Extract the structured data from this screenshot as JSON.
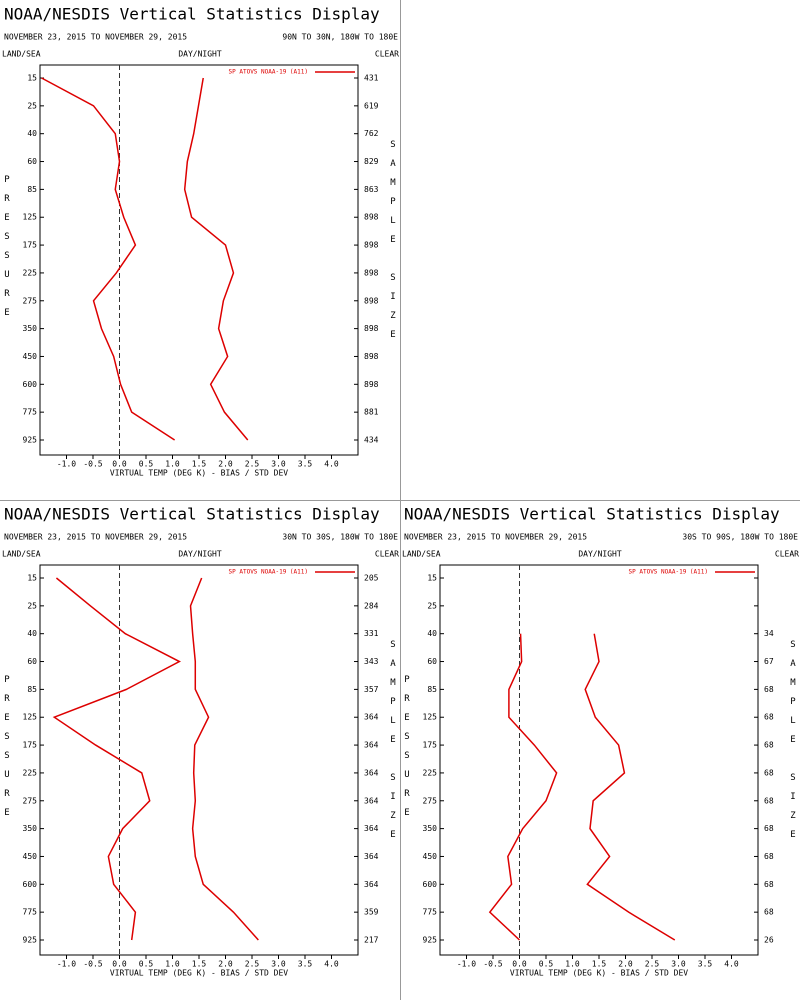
{
  "chart_data": [
    {
      "type": "line",
      "title": "NOAA/NESDIS Vertical Statistics Display",
      "date_range": "NOVEMBER 23, 2015 TO NOVEMBER 29, 2015",
      "region": "90N TO 30N, 180W TO 180E",
      "land_sea": "LAND/SEA",
      "day_night": "DAY/NIGHT",
      "sky": "CLEAR",
      "legend": "SP ATOVS NOAA-19 (A11)",
      "y_label": "PRESSURE",
      "y2_label": "SAMPLE SIZE",
      "x_label": "VIRTUAL TEMP (DEG K) - BIAS / STD DEV",
      "categories": [
        15,
        25,
        40,
        60,
        85,
        125,
        175,
        225,
        275,
        350,
        450,
        600,
        775,
        925
      ],
      "sample_sizes": [
        431,
        619,
        762,
        829,
        863,
        898,
        898,
        898,
        898,
        898,
        898,
        898,
        881,
        434
      ],
      "series": [
        {
          "name": "SP ATOVS NOAA-19 (A11)",
          "color": "#dd0000",
          "values": [
            -1.47,
            -0.49,
            -0.08,
            0.0,
            -0.08,
            0.08,
            0.3,
            -0.06,
            -0.49,
            -0.34,
            -0.11,
            0.02,
            0.23,
            1.04
          ]
        },
        {
          "color": "#dd0000",
          "values": [
            1.58,
            1.49,
            1.4,
            1.28,
            1.23,
            1.36,
            2.0,
            2.15,
            1.96,
            1.87,
            2.04,
            1.72,
            1.98,
            2.42
          ]
        }
      ],
      "xlim": [
        -1.5,
        4.5
      ],
      "xticks": [
        {
          "value": -1.0,
          "label": "-1.0"
        },
        -0.5,
        {
          "value": 0.0,
          "label": "0.0"
        },
        0.5,
        {
          "value": 1.0,
          "label": "1.0"
        },
        1.5,
        {
          "value": 2.0,
          "label": "2.0"
        },
        2.5,
        {
          "value": 3.0,
          "label": "3.0"
        },
        3.5,
        {
          "value": 4.0,
          "label": "4.0"
        }
      ]
    },
    {
      "type": "line",
      "title": "NOAA/NESDIS Vertical Statistics Display",
      "date_range": "NOVEMBER 23, 2015 TO NOVEMBER 29, 2015",
      "region": "30N TO 30S, 180W TO 180E",
      "land_sea": "LAND/SEA",
      "day_night": "DAY/NIGHT",
      "sky": "CLEAR",
      "legend": "SP ATOVS NOAA-19 (A11)",
      "y_label": "PRESSURE",
      "y2_label": "SAMPLE SIZE",
      "x_label": "VIRTUAL TEMP (DEG K) - BIAS / STD DEV",
      "categories": [
        15,
        25,
        40,
        60,
        85,
        125,
        175,
        225,
        275,
        350,
        450,
        600,
        775,
        925
      ],
      "sample_sizes": [
        205,
        284,
        331,
        343,
        357,
        364,
        364,
        364,
        364,
        364,
        364,
        364,
        359,
        217
      ],
      "series": [
        {
          "name": "SP ATOVS NOAA-19 (A11)",
          "color": "#dd0000",
          "values": [
            -1.19,
            -0.55,
            0.11,
            1.13,
            0.13,
            -1.23,
            -0.45,
            0.42,
            0.57,
            0.06,
            -0.21,
            -0.11,
            0.3,
            0.23
          ]
        },
        {
          "color": "#dd0000",
          "values": [
            1.55,
            1.34,
            1.38,
            1.43,
            1.43,
            1.68,
            1.42,
            1.4,
            1.43,
            1.38,
            1.43,
            1.58,
            2.15,
            2.62
          ]
        }
      ],
      "xlim": [
        -1.5,
        4.5
      ],
      "xticks": [
        {
          "value": -1.0,
          "label": "-1.0"
        },
        -0.5,
        {
          "value": 0.0,
          "label": "0.0"
        },
        0.5,
        {
          "value": 1.0,
          "label": "1.0"
        },
        1.5,
        {
          "value": 2.0,
          "label": "2.0"
        },
        2.5,
        {
          "value": 3.0,
          "label": "3.0"
        },
        3.5,
        {
          "value": 4.0,
          "label": "4.0"
        }
      ]
    },
    {
      "type": "line",
      "title": "NOAA/NESDIS Vertical Statistics Display",
      "date_range": "NOVEMBER 23, 2015 TO NOVEMBER 29, 2015",
      "region": "30S TO 90S, 180W TO 180E",
      "land_sea": "LAND/SEA",
      "day_night": "DAY/NIGHT",
      "sky": "CLEAR",
      "legend": "SP ATOVS NOAA-19 (A11)",
      "y_label": "PRESSURE",
      "y2_label": "SAMPLE SIZE",
      "x_label": "VIRTUAL TEMP (DEG K) - BIAS / STD DEV",
      "categories": [
        15,
        25,
        40,
        60,
        85,
        125,
        175,
        225,
        275,
        350,
        450,
        600,
        775,
        925
      ],
      "sample_sizes": [
        null,
        null,
        34,
        67,
        68,
        68,
        68,
        68,
        68,
        68,
        68,
        68,
        68,
        26
      ],
      "series": [
        {
          "name": "SP ATOVS NOAA-19 (A11)",
          "color": "#dd0000",
          "values": [
            null,
            null,
            0.02,
            0.04,
            -0.2,
            -0.2,
            0.28,
            0.7,
            0.5,
            0.06,
            -0.22,
            -0.15,
            -0.56,
            0.0
          ]
        },
        {
          "color": "#dd0000",
          "values": [
            null,
            null,
            1.41,
            1.5,
            1.24,
            1.43,
            1.87,
            1.98,
            1.39,
            1.33,
            1.7,
            1.28,
            2.06,
            2.93
          ]
        }
      ],
      "xlim": [
        -1.5,
        4.5
      ],
      "xticks": [
        {
          "value": -1.0,
          "label": "-1.0"
        },
        -0.5,
        {
          "value": 0.0,
          "label": "0.0"
        },
        0.5,
        {
          "value": 1.0,
          "label": "1.0"
        },
        1.5,
        {
          "value": 2.0,
          "label": "2.0"
        },
        2.5,
        {
          "value": 3.0,
          "label": "3.0"
        },
        3.5,
        {
          "value": 4.0,
          "label": "4.0"
        }
      ]
    }
  ]
}
